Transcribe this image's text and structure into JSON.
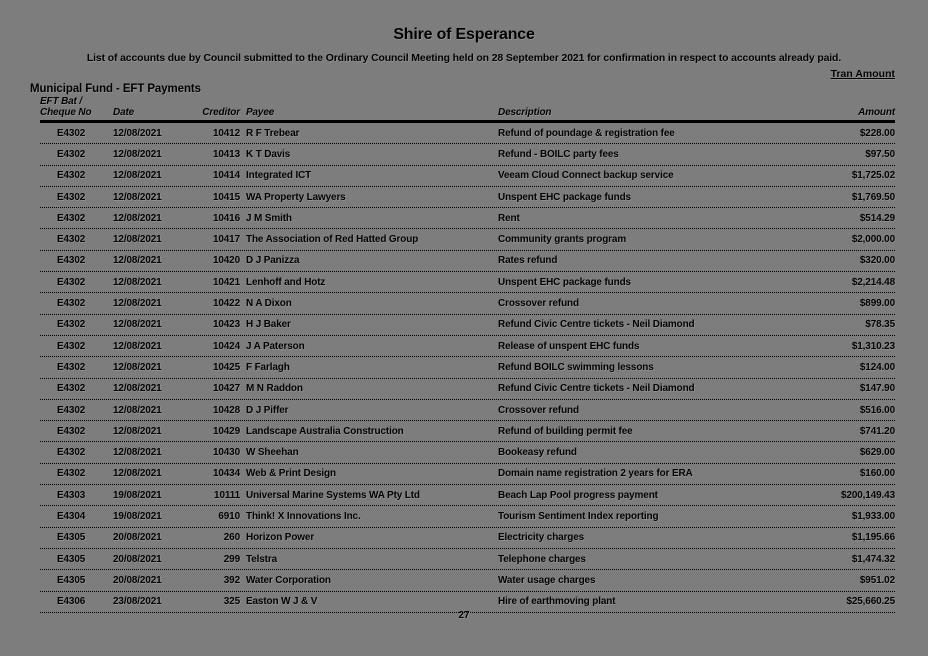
{
  "page": {
    "title": "Shire of Esperance",
    "subtitle": "List of accounts due by Council submitted to the Ordinary Council Meeting held on 28 September 2021 for confirmation in respect to accounts already paid.",
    "tran_amount_label": "Tran Amount",
    "section_title": "Municipal Fund - EFT Payments",
    "page_number": "27",
    "colors": {
      "background": "#7d7d7d",
      "text": "#000000"
    }
  },
  "table": {
    "headers": {
      "ref_line1": "EFT Bat /",
      "ref_line2": "Cheque No",
      "date": "Date",
      "creditor": "Creditor",
      "payee": "Payee",
      "description": "Description",
      "amount": "Amount"
    },
    "rows": [
      {
        "ref": "E4302",
        "date": "12/08/2021",
        "creditor": "10412",
        "payee": "R F Trebear",
        "description": "Refund of poundage & registration fee",
        "amount": "$228.00"
      },
      {
        "ref": "E4302",
        "date": "12/08/2021",
        "creditor": "10413",
        "payee": "K T Davis",
        "description": "Refund - BOILC party fees",
        "amount": "$97.50"
      },
      {
        "ref": "E4302",
        "date": "12/08/2021",
        "creditor": "10414",
        "payee": "Integrated ICT",
        "description": "Veeam Cloud Connect backup service",
        "amount": "$1,725.02"
      },
      {
        "ref": "E4302",
        "date": "12/08/2021",
        "creditor": "10415",
        "payee": "WA Property Lawyers",
        "description": "Unspent EHC package funds",
        "amount": "$1,769.50"
      },
      {
        "ref": "E4302",
        "date": "12/08/2021",
        "creditor": "10416",
        "payee": "J M Smith",
        "description": "Rent",
        "amount": "$514.29"
      },
      {
        "ref": "E4302",
        "date": "12/08/2021",
        "creditor": "10417",
        "payee": "The Association of Red Hatted Group",
        "description": "Community grants program",
        "amount": "$2,000.00"
      },
      {
        "ref": "E4302",
        "date": "12/08/2021",
        "creditor": "10420",
        "payee": "D J Panizza",
        "description": "Rates refund",
        "amount": "$320.00"
      },
      {
        "ref": "E4302",
        "date": "12/08/2021",
        "creditor": "10421",
        "payee": "Lenhoff and Hotz",
        "description": "Unspent EHC package funds",
        "amount": "$2,214.48"
      },
      {
        "ref": "E4302",
        "date": "12/08/2021",
        "creditor": "10422",
        "payee": "N A Dixon",
        "description": "Crossover refund",
        "amount": "$899.00"
      },
      {
        "ref": "E4302",
        "date": "12/08/2021",
        "creditor": "10423",
        "payee": "H J Baker",
        "description": "Refund Civic Centre tickets - Neil Diamond",
        "amount": "$78.35"
      },
      {
        "ref": "E4302",
        "date": "12/08/2021",
        "creditor": "10424",
        "payee": "J A Paterson",
        "description": "Release of unspent EHC funds",
        "amount": "$1,310.23"
      },
      {
        "ref": "E4302",
        "date": "12/08/2021",
        "creditor": "10425",
        "payee": "F Farlagh",
        "description": "Refund BOILC swimming lessons",
        "amount": "$124.00"
      },
      {
        "ref": "E4302",
        "date": "12/08/2021",
        "creditor": "10427",
        "payee": "M N Raddon",
        "description": "Refund Civic Centre tickets - Neil Diamond",
        "amount": "$147.90"
      },
      {
        "ref": "E4302",
        "date": "12/08/2021",
        "creditor": "10428",
        "payee": "D J Piffer",
        "description": "Crossover refund",
        "amount": "$516.00"
      },
      {
        "ref": "E4302",
        "date": "12/08/2021",
        "creditor": "10429",
        "payee": "Landscape Australia Construction",
        "description": "Refund of building permit fee",
        "amount": "$741.20"
      },
      {
        "ref": "E4302",
        "date": "12/08/2021",
        "creditor": "10430",
        "payee": "W Sheehan",
        "description": "Bookeasy refund",
        "amount": "$629.00"
      },
      {
        "ref": "E4302",
        "date": "12/08/2021",
        "creditor": "10434",
        "payee": "Web & Print Design",
        "description": "Domain name registration 2 years for ERA",
        "amount": "$160.00"
      },
      {
        "ref": "E4303",
        "date": "19/08/2021",
        "creditor": "10111",
        "payee": "Universal Marine Systems WA Pty Ltd",
        "description": "Beach Lap Pool progress payment",
        "amount": "$200,149.43"
      },
      {
        "ref": "E4304",
        "date": "19/08/2021",
        "creditor": "6910",
        "payee": "Think! X Innovations Inc.",
        "description": "Tourism Sentiment Index reporting",
        "amount": "$1,933.00"
      },
      {
        "ref": "E4305",
        "date": "20/08/2021",
        "creditor": "260",
        "payee": "Horizon Power",
        "description": "Electricity charges",
        "amount": "$1,195.66"
      },
      {
        "ref": "E4305",
        "date": "20/08/2021",
        "creditor": "299",
        "payee": "Telstra",
        "description": "Telephone charges",
        "amount": "$1,474.32"
      },
      {
        "ref": "E4305",
        "date": "20/08/2021",
        "creditor": "392",
        "payee": "Water Corporation",
        "description": "Water usage charges",
        "amount": "$951.02"
      },
      {
        "ref": "E4306",
        "date": "23/08/2021",
        "creditor": "325",
        "payee": "Easton W J & V",
        "description": "Hire of earthmoving plant",
        "amount": "$25,660.25"
      }
    ]
  }
}
